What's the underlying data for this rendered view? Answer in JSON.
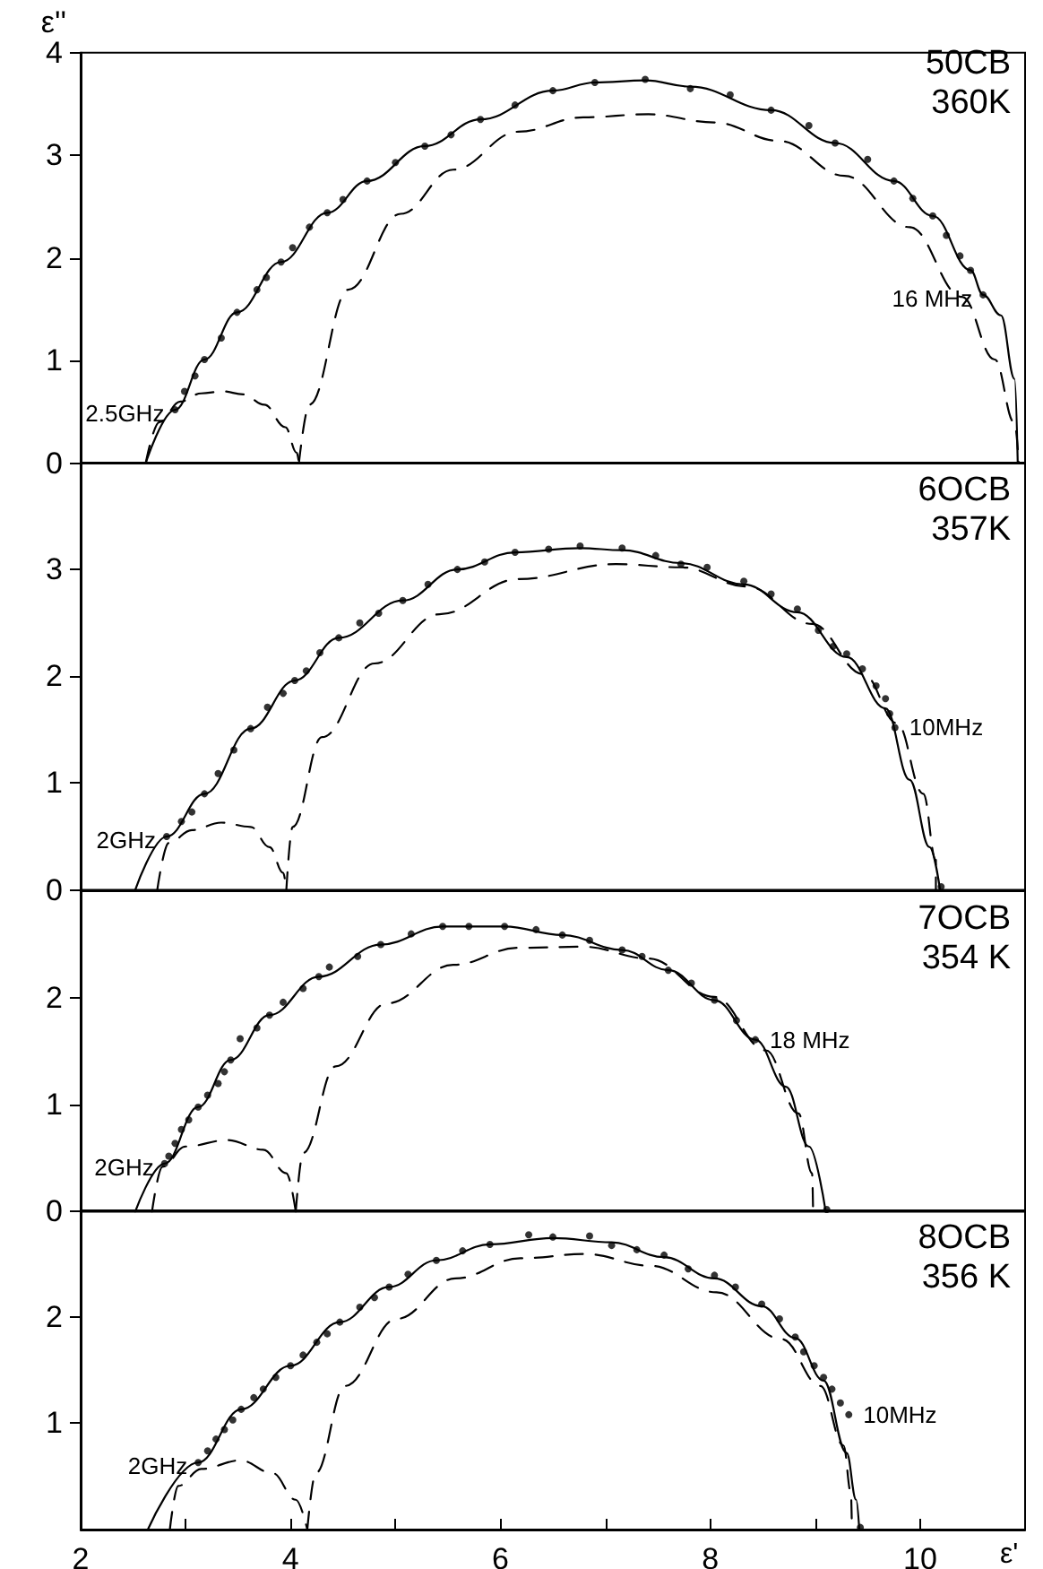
{
  "chart_data": [
    {
      "type": "scatter",
      "ylabel": "ε''",
      "xlim": [
        2,
        11
      ],
      "ylim": [
        0,
        4
      ],
      "yticks": [
        0,
        1,
        2,
        3,
        4
      ],
      "tick_labels": "y",
      "grid": false,
      "annotations": [
        "50CB",
        "360K",
        {
          "text": "2.5GHz",
          "x": 2.9,
          "y": 0.52
        },
        {
          "text": "16 MHz",
          "x": 10.6,
          "y": 1.64
        }
      ],
      "series": [
        {
          "marker": "circle",
          "color": "#000000",
          "x": [
            2.9,
            2.99,
            3.09,
            3.18,
            3.34,
            3.49,
            3.68,
            3.77,
            3.91,
            4.02,
            4.18,
            4.35,
            4.5,
            4.73,
            5.0,
            5.28,
            5.53,
            5.81,
            6.14,
            6.5,
            6.9,
            7.38,
            7.81,
            8.19,
            8.58,
            8.94,
            9.19,
            9.5,
            9.75,
            9.93,
            10.12,
            10.25,
            10.38,
            10.48,
            10.6
          ],
          "values": [
            0.52,
            0.7,
            0.85,
            1.01,
            1.22,
            1.47,
            1.69,
            1.81,
            1.96,
            2.1,
            2.3,
            2.44,
            2.57,
            2.75,
            2.93,
            3.09,
            3.2,
            3.35,
            3.49,
            3.63,
            3.71,
            3.74,
            3.65,
            3.59,
            3.44,
            3.29,
            3.12,
            2.96,
            2.75,
            2.58,
            2.41,
            2.22,
            2.02,
            1.88,
            1.64
          ]
        },
        {
          "type": "line",
          "marker": "none",
          "line_style": "solid",
          "color": "#000000",
          "x": [
            2.62,
            2.9,
            3.18,
            3.49,
            3.91,
            4.35,
            4.73,
            5.28,
            5.81,
            6.5,
            6.9,
            7.38,
            7.81,
            8.58,
            9.19,
            9.75,
            10.12,
            10.48,
            10.6,
            10.77,
            10.9,
            10.93
          ],
          "values": [
            0,
            0.52,
            1.01,
            1.47,
            1.96,
            2.44,
            2.75,
            3.09,
            3.35,
            3.63,
            3.71,
            3.73,
            3.67,
            3.44,
            3.12,
            2.75,
            2.41,
            1.88,
            1.64,
            1.44,
            0.82,
            0
          ]
        },
        {
          "type": "line",
          "marker": "none",
          "line_style": "dashed",
          "color": "#000000",
          "x": [
            2.62,
            2.75,
            2.95,
            3.15,
            3.35,
            3.55,
            3.75,
            3.95,
            4.06,
            4.08
          ],
          "values": [
            0,
            0.4,
            0.6,
            0.68,
            0.7,
            0.67,
            0.57,
            0.35,
            0.1,
            0
          ]
        },
        {
          "type": "line",
          "marker": "none",
          "line_style": "dashed",
          "color": "#000000",
          "x": [
            4.08,
            4.18,
            4.55,
            5.05,
            5.55,
            6.17,
            6.79,
            7.41,
            8.04,
            8.66,
            9.28,
            9.9,
            10.4,
            10.71,
            10.9,
            10.94
          ],
          "values": [
            0,
            0.57,
            1.69,
            2.43,
            2.86,
            3.23,
            3.37,
            3.4,
            3.32,
            3.14,
            2.8,
            2.3,
            1.62,
            1.01,
            0.39,
            0
          ]
        }
      ]
    },
    {
      "type": "scatter",
      "xlim": [
        2,
        11
      ],
      "ylim": [
        0,
        4
      ],
      "yticks": [
        0,
        1,
        2,
        3
      ],
      "tick_labels": "y",
      "grid": false,
      "annotations": [
        "6OCB",
        "357K",
        {
          "text": "2GHz",
          "x": 2.82,
          "y": 0.5
        },
        {
          "text": "10MHz",
          "x": 9.76,
          "y": 1.52
        }
      ],
      "series": [
        {
          "marker": "circle",
          "color": "#000000",
          "x": [
            2.82,
            2.96,
            3.06,
            3.18,
            3.31,
            3.46,
            3.62,
            3.78,
            3.93,
            4.04,
            4.15,
            4.28,
            4.46,
            4.66,
            4.84,
            5.07,
            5.31,
            5.59,
            5.85,
            6.14,
            6.46,
            6.76,
            7.16,
            7.48,
            7.72,
            7.97,
            8.32,
            8.58,
            8.83,
            9.03,
            9.17,
            9.3,
            9.45,
            9.58,
            9.67,
            9.71,
            9.76,
            10.2
          ],
          "values": [
            0.5,
            0.64,
            0.73,
            0.9,
            1.09,
            1.31,
            1.51,
            1.71,
            1.84,
            1.96,
            2.05,
            2.22,
            2.36,
            2.5,
            2.59,
            2.71,
            2.86,
            3.0,
            3.07,
            3.16,
            3.19,
            3.22,
            3.2,
            3.13,
            3.05,
            3.02,
            2.89,
            2.77,
            2.63,
            2.43,
            2.28,
            2.21,
            2.07,
            1.91,
            1.79,
            1.65,
            1.52,
            0.03
          ]
        },
        {
          "type": "line",
          "marker": "none",
          "line_style": "solid",
          "color": "#000000",
          "x": [
            2.52,
            2.82,
            3.18,
            3.62,
            4.04,
            4.46,
            5.07,
            5.59,
            6.14,
            6.76,
            7.16,
            7.72,
            8.32,
            8.83,
            9.3,
            9.67,
            9.9,
            10.09,
            10.19
          ],
          "values": [
            0,
            0.5,
            0.9,
            1.51,
            1.96,
            2.36,
            2.71,
            3.0,
            3.16,
            3.2,
            3.18,
            3.06,
            2.86,
            2.6,
            2.18,
            1.7,
            1.03,
            0.4,
            0
          ]
        },
        {
          "type": "line",
          "marker": "none",
          "line_style": "dashed",
          "color": "#000000",
          "x": [
            2.73,
            2.84,
            3.06,
            3.34,
            3.62,
            3.8,
            3.93,
            3.96
          ],
          "values": [
            0,
            0.44,
            0.56,
            0.63,
            0.59,
            0.4,
            0.16,
            0
          ]
        },
        {
          "type": "line",
          "marker": "none",
          "line_style": "dashed",
          "color": "#000000",
          "x": [
            3.96,
            4.02,
            4.3,
            4.8,
            5.42,
            6.17,
            7.1,
            7.72,
            8.35,
            8.97,
            9.46,
            9.78,
            10.03,
            10.15,
            10.15
          ],
          "values": [
            0,
            0.59,
            1.43,
            2.12,
            2.58,
            2.91,
            3.05,
            3.02,
            2.84,
            2.49,
            2.02,
            1.56,
            0.9,
            0.28,
            0
          ]
        }
      ]
    },
    {
      "type": "scatter",
      "xlim": [
        2,
        11
      ],
      "ylim": [
        0,
        3
      ],
      "yticks": [
        0,
        1,
        2
      ],
      "tick_labels": "y",
      "grid": false,
      "annotations": [
        "7OCB",
        "354 K",
        {
          "text": "2GHz",
          "x": 2.8,
          "y": 0.45
        },
        {
          "text": "18 MHz",
          "x": 8.43,
          "y": 1.61
        }
      ],
      "series": [
        {
          "marker": "circle",
          "color": "#000000",
          "x": [
            2.8,
            2.84,
            2.9,
            2.96,
            3.03,
            3.12,
            3.21,
            3.31,
            3.37,
            3.43,
            3.52,
            3.68,
            3.8,
            3.93,
            4.12,
            4.27,
            4.37,
            4.64,
            4.86,
            5.15,
            5.45,
            5.7,
            6.04,
            6.34,
            6.59,
            6.85,
            7.16,
            7.35,
            7.6,
            7.82,
            8.04,
            8.25,
            8.43,
            9.11
          ],
          "values": [
            0.45,
            0.52,
            0.64,
            0.77,
            0.86,
            0.98,
            1.09,
            1.2,
            1.31,
            1.42,
            1.62,
            1.72,
            1.84,
            1.96,
            2.09,
            2.2,
            2.29,
            2.39,
            2.5,
            2.6,
            2.67,
            2.67,
            2.67,
            2.64,
            2.59,
            2.54,
            2.45,
            2.39,
            2.26,
            2.14,
            1.98,
            1.79,
            1.61,
            0.02
          ]
        },
        {
          "type": "line",
          "marker": "none",
          "line_style": "solid",
          "color": "#000000",
          "x": [
            2.52,
            2.8,
            3.12,
            3.43,
            3.8,
            4.27,
            4.86,
            5.45,
            6.04,
            6.59,
            7.16,
            7.6,
            8.04,
            8.43,
            8.72,
            8.94,
            9.1
          ],
          "values": [
            0,
            0.45,
            0.98,
            1.42,
            1.84,
            2.2,
            2.5,
            2.67,
            2.67,
            2.59,
            2.45,
            2.26,
            1.98,
            1.61,
            1.17,
            0.61,
            0
          ]
        },
        {
          "type": "line",
          "marker": "none",
          "line_style": "dashed",
          "color": "#000000",
          "x": [
            2.68,
            2.78,
            3.0,
            3.4,
            3.74,
            3.96,
            4.05
          ],
          "values": [
            0,
            0.42,
            0.61,
            0.67,
            0.58,
            0.36,
            0
          ]
        },
        {
          "type": "line",
          "marker": "none",
          "line_style": "dashed",
          "color": "#000000",
          "x": [
            4.05,
            4.12,
            4.43,
            4.92,
            5.55,
            6.17,
            6.79,
            7.41,
            8.04,
            8.53,
            8.84,
            8.97,
            8.98
          ],
          "values": [
            0,
            0.55,
            1.36,
            1.95,
            2.31,
            2.47,
            2.48,
            2.37,
            2.01,
            1.51,
            0.92,
            0.36,
            0
          ]
        }
      ]
    },
    {
      "type": "scatter",
      "xlabel": "ε'",
      "xlim": [
        2,
        11
      ],
      "ylim": [
        0,
        3
      ],
      "yticks": [
        1,
        2
      ],
      "xticks": [
        2,
        {
          "value": 3,
          "label": null
        },
        4,
        {
          "value": 5,
          "label": null
        },
        6,
        {
          "value": 7,
          "label": null
        },
        8,
        {
          "value": 9,
          "label": null
        },
        10
      ],
      "grid": false,
      "annotations": [
        "8OCB",
        "356 K",
        {
          "text": "2GHz",
          "x": 3.12,
          "y": 0.63
        },
        {
          "text": "10MHz",
          "x": 9.32,
          "y": 1.08
        }
      ],
      "series": [
        {
          "marker": "circle",
          "color": "#000000",
          "x": [
            3.12,
            3.21,
            3.29,
            3.37,
            3.45,
            3.53,
            3.65,
            3.74,
            3.86,
            4.0,
            4.12,
            4.25,
            4.35,
            4.47,
            4.66,
            4.8,
            4.94,
            5.12,
            5.39,
            5.64,
            5.9,
            6.27,
            6.5,
            6.85,
            7.06,
            7.3,
            7.56,
            7.79,
            8.04,
            8.24,
            8.49,
            8.66,
            8.81,
            8.89,
            8.99,
            9.08,
            9.16,
            9.24,
            9.32,
            9.43
          ],
          "values": [
            0.63,
            0.74,
            0.85,
            0.94,
            1.03,
            1.13,
            1.24,
            1.32,
            1.43,
            1.54,
            1.64,
            1.76,
            1.84,
            1.95,
            2.09,
            2.18,
            2.28,
            2.4,
            2.53,
            2.62,
            2.68,
            2.77,
            2.75,
            2.76,
            2.67,
            2.63,
            2.58,
            2.45,
            2.39,
            2.28,
            2.12,
            1.98,
            1.81,
            1.67,
            1.54,
            1.43,
            1.32,
            1.19,
            1.08,
            0.02
          ]
        },
        {
          "type": "line",
          "marker": "none",
          "line_style": "solid",
          "color": "#000000",
          "x": [
            2.64,
            3.12,
            3.53,
            4.0,
            4.47,
            4.94,
            5.39,
            5.9,
            6.5,
            7.06,
            7.56,
            8.04,
            8.49,
            8.81,
            9.08,
            9.3,
            9.39,
            9.42
          ],
          "values": [
            0,
            0.63,
            1.13,
            1.54,
            1.95,
            2.28,
            2.53,
            2.68,
            2.74,
            2.7,
            2.56,
            2.36,
            2.1,
            1.8,
            1.4,
            0.72,
            0.28,
            0
          ]
        },
        {
          "type": "line",
          "marker": "none",
          "line_style": "dashed",
          "color": "#000000",
          "x": [
            2.85,
            2.93,
            3.15,
            3.52,
            3.83,
            4.05,
            4.16
          ],
          "values": [
            0,
            0.41,
            0.57,
            0.65,
            0.53,
            0.28,
            0
          ]
        },
        {
          "type": "line",
          "marker": "none",
          "line_style": "dashed",
          "color": "#000000",
          "x": [
            4.16,
            4.24,
            4.52,
            5.01,
            5.57,
            6.19,
            6.81,
            7.43,
            8.06,
            8.68,
            9.05,
            9.27,
            9.34,
            9.35
          ],
          "values": [
            0,
            0.53,
            1.35,
            1.98,
            2.36,
            2.55,
            2.59,
            2.48,
            2.23,
            1.79,
            1.35,
            0.79,
            0.35,
            0
          ]
        }
      ]
    }
  ]
}
